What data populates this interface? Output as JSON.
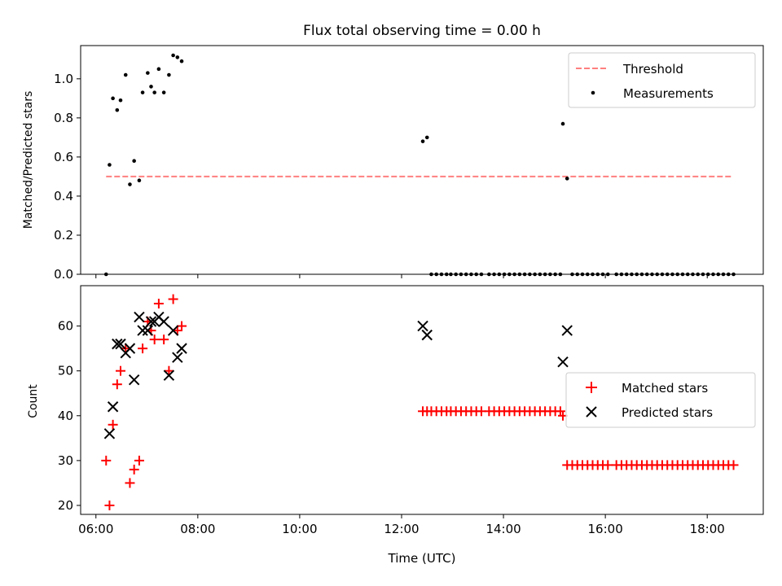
{
  "figure": {
    "title": "Flux total observing time = 0.00 h"
  },
  "colors": {
    "threshold": "#ff7f7f",
    "measurement": "#000000",
    "matched": "#ff0000",
    "predicted": "#000000"
  },
  "chart_data": [
    {
      "type": "scatter",
      "title": "Flux total observing time = 0.00 h",
      "xlabel": "",
      "ylabel": "Matched/Predicted stars",
      "xlim": [
        "05:42",
        "19:06"
      ],
      "ylim": [
        0,
        1.17
      ],
      "xticks": [
        "06:00",
        "08:00",
        "10:00",
        "12:00",
        "14:00",
        "16:00",
        "18:00"
      ],
      "xtick_labels_visible": false,
      "yticks": [
        0.0,
        0.2,
        0.4,
        0.6,
        0.8,
        1.0
      ],
      "ytick_labels": [
        "0.0",
        "0.2",
        "0.4",
        "0.6",
        "0.8",
        "1.0"
      ],
      "grid": false,
      "legend": "upper-right",
      "threshold": {
        "name": "Threshold",
        "style": "dashed line",
        "y": 0.5,
        "x_from": "06:12",
        "x_to": "18:30"
      },
      "series": [
        {
          "name": "Measurements",
          "marker": "dot",
          "points": [
            [
              "06:12",
              0.0
            ],
            [
              "06:16",
              0.56
            ],
            [
              "06:20",
              0.9
            ],
            [
              "06:25",
              0.84
            ],
            [
              "06:29",
              0.89
            ],
            [
              "06:35",
              1.02
            ],
            [
              "06:40",
              0.46
            ],
            [
              "06:45",
              0.58
            ],
            [
              "06:51",
              0.48
            ],
            [
              "06:55",
              0.93
            ],
            [
              "07:01",
              1.03
            ],
            [
              "07:05",
              0.96
            ],
            [
              "07:09",
              0.93
            ],
            [
              "07:14",
              1.05
            ],
            [
              "07:20",
              0.93
            ],
            [
              "07:26",
              1.02
            ],
            [
              "07:31",
              1.12
            ],
            [
              "07:36",
              1.11
            ],
            [
              "07:41",
              1.09
            ],
            [
              "12:25",
              0.68
            ],
            [
              "12:30",
              0.7
            ],
            [
              "15:10",
              0.77
            ],
            [
              "15:15",
              0.49
            ],
            [
              "12:35",
              0.0
            ],
            [
              "12:41",
              0.0
            ],
            [
              "12:47",
              0.0
            ],
            [
              "12:53",
              0.0
            ],
            [
              "12:58",
              0.0
            ],
            [
              "13:04",
              0.0
            ],
            [
              "13:10",
              0.0
            ],
            [
              "13:16",
              0.0
            ],
            [
              "13:22",
              0.0
            ],
            [
              "13:28",
              0.0
            ],
            [
              "13:34",
              0.0
            ],
            [
              "13:43",
              0.0
            ],
            [
              "13:49",
              0.0
            ],
            [
              "13:55",
              0.0
            ],
            [
              "14:01",
              0.0
            ],
            [
              "14:07",
              0.0
            ],
            [
              "14:13",
              0.0
            ],
            [
              "14:19",
              0.0
            ],
            [
              "14:25",
              0.0
            ],
            [
              "14:31",
              0.0
            ],
            [
              "14:37",
              0.0
            ],
            [
              "14:43",
              0.0
            ],
            [
              "14:49",
              0.0
            ],
            [
              "14:55",
              0.0
            ],
            [
              "15:01",
              0.0
            ],
            [
              "15:07",
              0.0
            ],
            [
              "15:21",
              0.0
            ],
            [
              "15:27",
              0.0
            ],
            [
              "15:33",
              0.0
            ],
            [
              "15:39",
              0.0
            ],
            [
              "15:45",
              0.0
            ],
            [
              "15:51",
              0.0
            ],
            [
              "15:57",
              0.0
            ],
            [
              "16:03",
              0.0
            ],
            [
              "16:13",
              0.0
            ],
            [
              "16:19",
              0.0
            ],
            [
              "16:25",
              0.0
            ],
            [
              "16:31",
              0.0
            ],
            [
              "16:37",
              0.0
            ],
            [
              "16:43",
              0.0
            ],
            [
              "16:49",
              0.0
            ],
            [
              "16:55",
              0.0
            ],
            [
              "17:01",
              0.0
            ],
            [
              "17:07",
              0.0
            ],
            [
              "17:13",
              0.0
            ],
            [
              "17:19",
              0.0
            ],
            [
              "17:25",
              0.0
            ],
            [
              "17:31",
              0.0
            ],
            [
              "17:37",
              0.0
            ],
            [
              "17:43",
              0.0
            ],
            [
              "17:49",
              0.0
            ],
            [
              "17:55",
              0.0
            ],
            [
              "18:01",
              0.0
            ],
            [
              "18:07",
              0.0
            ],
            [
              "18:13",
              0.0
            ],
            [
              "18:19",
              0.0
            ],
            [
              "18:25",
              0.0
            ],
            [
              "18:31",
              0.0
            ]
          ]
        }
      ]
    },
    {
      "type": "scatter",
      "title": "",
      "xlabel": "Time (UTC)",
      "ylabel": "Count",
      "xlim": [
        "05:42",
        "19:06"
      ],
      "ylim": [
        18,
        69
      ],
      "xticks": [
        "06:00",
        "08:00",
        "10:00",
        "12:00",
        "14:00",
        "16:00",
        "18:00"
      ],
      "xtick_labels": [
        "06:00",
        "08:00",
        "10:00",
        "12:00",
        "14:00",
        "16:00",
        "18:00"
      ],
      "yticks": [
        20,
        30,
        40,
        50,
        60
      ],
      "ytick_labels": [
        "20",
        "30",
        "40",
        "50",
        "60"
      ],
      "grid": false,
      "legend": "center-right",
      "series": [
        {
          "name": "Matched stars",
          "marker": "plus",
          "points": [
            [
              "06:12",
              30
            ],
            [
              "06:16",
              20
            ],
            [
              "06:20",
              38
            ],
            [
              "06:25",
              47
            ],
            [
              "06:29",
              50
            ],
            [
              "06:35",
              55
            ],
            [
              "06:40",
              25
            ],
            [
              "06:45",
              28
            ],
            [
              "06:51",
              30
            ],
            [
              "06:55",
              55
            ],
            [
              "07:01",
              61
            ],
            [
              "07:05",
              59
            ],
            [
              "07:09",
              57
            ],
            [
              "07:14",
              65
            ],
            [
              "07:20",
              57
            ],
            [
              "07:26",
              50
            ],
            [
              "07:31",
              66
            ],
            [
              "07:36",
              59
            ],
            [
              "07:41",
              60
            ],
            [
              "12:25",
              41
            ],
            [
              "12:30",
              41
            ],
            [
              "12:35",
              41
            ],
            [
              "12:41",
              41
            ],
            [
              "12:47",
              41
            ],
            [
              "12:53",
              41
            ],
            [
              "12:58",
              41
            ],
            [
              "13:04",
              41
            ],
            [
              "13:10",
              41
            ],
            [
              "13:16",
              41
            ],
            [
              "13:22",
              41
            ],
            [
              "13:28",
              41
            ],
            [
              "13:34",
              41
            ],
            [
              "13:43",
              41
            ],
            [
              "13:49",
              41
            ],
            [
              "13:55",
              41
            ],
            [
              "14:01",
              41
            ],
            [
              "14:07",
              41
            ],
            [
              "14:13",
              41
            ],
            [
              "14:19",
              41
            ],
            [
              "14:25",
              41
            ],
            [
              "14:31",
              41
            ],
            [
              "14:37",
              41
            ],
            [
              "14:43",
              41
            ],
            [
              "14:49",
              41
            ],
            [
              "14:55",
              41
            ],
            [
              "15:01",
              41
            ],
            [
              "15:07",
              41
            ],
            [
              "15:10",
              40
            ],
            [
              "15:15",
              29
            ],
            [
              "15:21",
              29
            ],
            [
              "15:27",
              29
            ],
            [
              "15:33",
              29
            ],
            [
              "15:39",
              29
            ],
            [
              "15:45",
              29
            ],
            [
              "15:51",
              29
            ],
            [
              "15:57",
              29
            ],
            [
              "16:03",
              29
            ],
            [
              "16:13",
              29
            ],
            [
              "16:19",
              29
            ],
            [
              "16:25",
              29
            ],
            [
              "16:31",
              29
            ],
            [
              "16:37",
              29
            ],
            [
              "16:43",
              29
            ],
            [
              "16:49",
              29
            ],
            [
              "16:55",
              29
            ],
            [
              "17:01",
              29
            ],
            [
              "17:07",
              29
            ],
            [
              "17:13",
              29
            ],
            [
              "17:19",
              29
            ],
            [
              "17:25",
              29
            ],
            [
              "17:31",
              29
            ],
            [
              "17:37",
              29
            ],
            [
              "17:43",
              29
            ],
            [
              "17:49",
              29
            ],
            [
              "17:55",
              29
            ],
            [
              "18:01",
              29
            ],
            [
              "18:07",
              29
            ],
            [
              "18:13",
              29
            ],
            [
              "18:19",
              29
            ],
            [
              "18:25",
              29
            ],
            [
              "18:31",
              29
            ]
          ]
        },
        {
          "name": "Predicted stars",
          "marker": "x",
          "points": [
            [
              "06:16",
              36
            ],
            [
              "06:20",
              42
            ],
            [
              "06:25",
              56
            ],
            [
              "06:29",
              56
            ],
            [
              "06:35",
              54
            ],
            [
              "06:40",
              55
            ],
            [
              "06:45",
              48
            ],
            [
              "06:51",
              62
            ],
            [
              "06:55",
              59
            ],
            [
              "07:01",
              59
            ],
            [
              "07:05",
              61
            ],
            [
              "07:09",
              61
            ],
            [
              "07:14",
              62
            ],
            [
              "07:20",
              61
            ],
            [
              "07:26",
              49
            ],
            [
              "07:31",
              59
            ],
            [
              "07:36",
              53
            ],
            [
              "07:41",
              55
            ],
            [
              "12:25",
              60
            ],
            [
              "12:30",
              58
            ],
            [
              "15:10",
              52
            ],
            [
              "15:15",
              59
            ]
          ]
        }
      ]
    }
  ]
}
